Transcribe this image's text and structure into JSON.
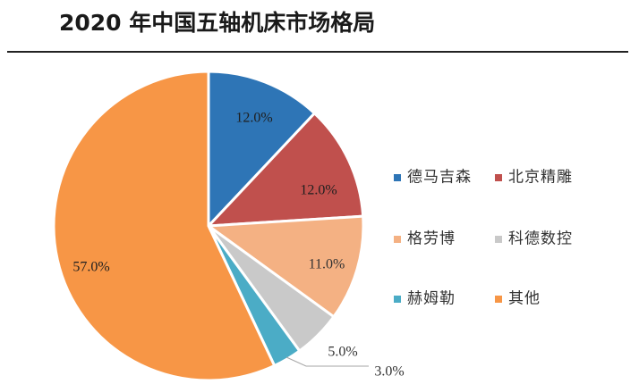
{
  "chart_data": {
    "type": "pie",
    "title": "2020 年中国五轴机床市场格局",
    "categories": [
      "德马吉森",
      "北京精雕",
      "格劳博",
      "科德数控",
      "赫姆勒",
      "其他"
    ],
    "values": [
      12.0,
      12.0,
      11.0,
      5.0,
      3.0,
      57.0
    ],
    "labels": [
      "12.0%",
      "12.0%",
      "11.0%",
      "5.0%",
      "3.0%",
      "57.0%"
    ],
    "colors": [
      "#2e75b6",
      "#c0504d",
      "#f4b183",
      "#c9c9c9",
      "#4bacc6",
      "#f79646"
    ],
    "label_colors": [
      "#1f1f1f",
      "#1f1f1f",
      "#333333",
      "#333333",
      "#333333",
      "#1f1f1f"
    ],
    "legend_position": "right"
  }
}
